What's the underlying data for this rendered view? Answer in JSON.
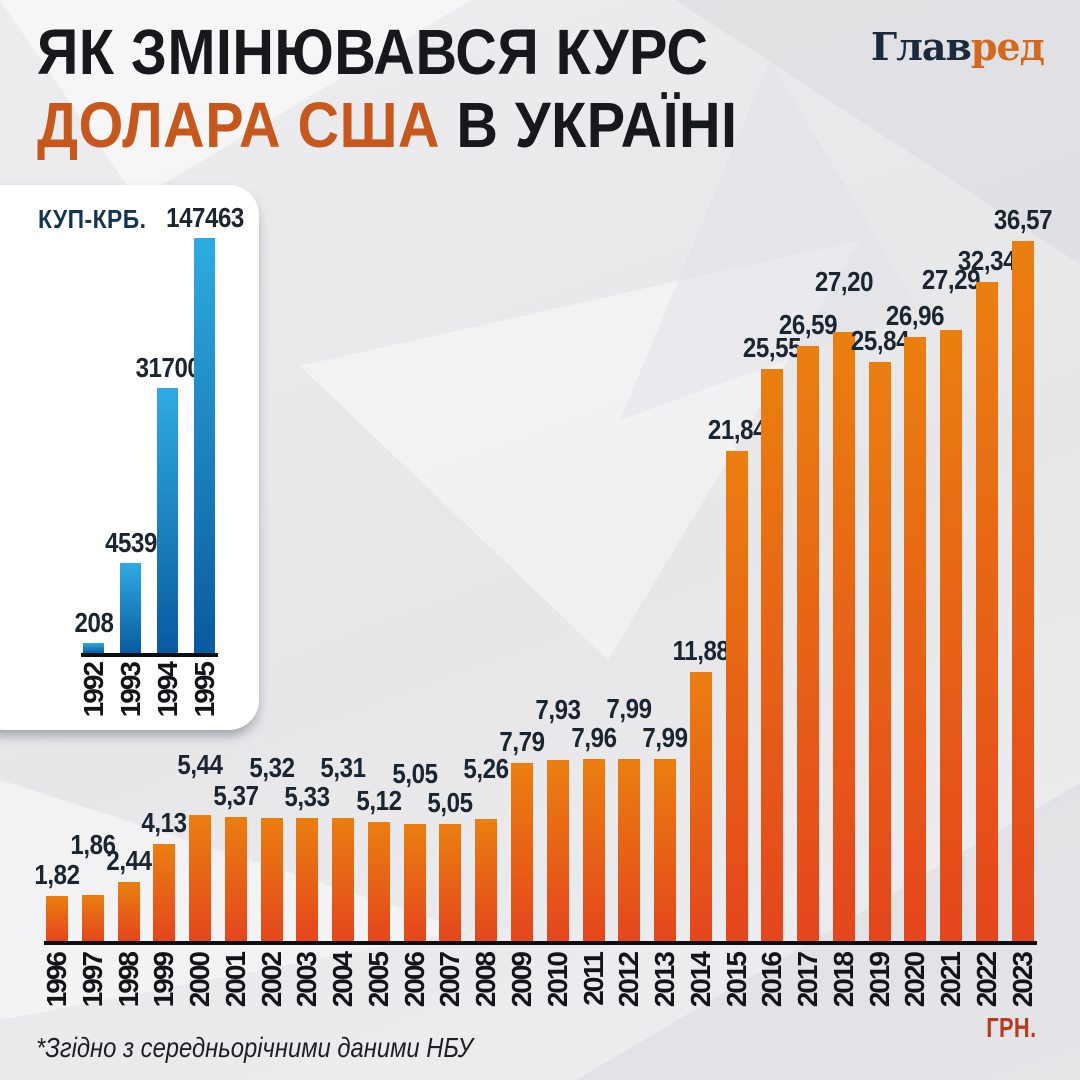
{
  "header": {
    "title_line1": "ЯК ЗМІНЮВАВСЯ КУРС",
    "title_line2_highlight": "ДОЛАРА США",
    "title_line2_rest": " В УКРАЇНІ",
    "logo_part1": "Глав",
    "logo_part2": "ред"
  },
  "footnote": "*Згідно з середньорічними даними НБУ",
  "colors": {
    "accent_orange": "#C6571D",
    "bar_orange_top": "#EA7F10",
    "bar_orange_bottom": "#E4461D",
    "bar_blue_top": "#2FABE1",
    "bar_blue_bottom": "#0A5AA0",
    "logo_navy": "#1C2B3C",
    "logo_orange": "#D2691E",
    "inset_header_navy": "#14344F",
    "grn_label_color": "#B83B1B",
    "axis_color": "#0C0E12",
    "background": "#E9E9EB",
    "card": "#FFFFFF"
  },
  "chart_data": [
    {
      "id": "usd-uah-1996-2023",
      "type": "bar",
      "title": "ЯК ЗМІНЮВАВСЯ КУРС ДОЛАРА США В УКРАЇНІ",
      "unit_label": "ГРН.",
      "categories": [
        "1996",
        "1997",
        "1998",
        "1999",
        "2000",
        "2001",
        "2002",
        "2003",
        "2004",
        "2005",
        "2006",
        "2007",
        "2008",
        "2009",
        "2010",
        "2011",
        "2012",
        "2013",
        "2014",
        "2015",
        "2016",
        "2017",
        "2018",
        "2019",
        "2020",
        "2021",
        "2022",
        "2023"
      ],
      "values": [
        1.82,
        1.86,
        2.44,
        4.13,
        5.44,
        5.37,
        5.32,
        5.33,
        5.31,
        5.12,
        5.05,
        5.05,
        5.26,
        7.79,
        7.93,
        7.96,
        7.99,
        7.99,
        11.88,
        21.84,
        25.55,
        26.59,
        27.2,
        25.84,
        26.96,
        27.29,
        32.34,
        36.57
      ],
      "value_labels": [
        "1,82",
        "1,86",
        "2,44",
        "4,13",
        "5,44",
        "5,37",
        "5,32",
        "5,33",
        "5,31",
        "5,12",
        "5,05",
        "5,05",
        "5,26",
        "7,79",
        "7,93",
        "7,96",
        "7,99",
        "7,99",
        "11,88",
        "21,84",
        "25,55",
        "26,59",
        "27,20",
        "25,84",
        "26,96",
        "27,29",
        "32,34",
        "36,57"
      ],
      "ylim": [
        0,
        37
      ],
      "grid": false,
      "legend": "none",
      "note": "*Згідно з середньорічними даними НБУ"
    },
    {
      "id": "usd-kup-krb-1992-1995",
      "type": "bar",
      "unit_label": "КУП-КРБ.",
      "categories": [
        "1992",
        "1993",
        "1994",
        "1995"
      ],
      "values": [
        208,
        4539,
        31700,
        147463
      ],
      "value_labels": [
        "208",
        "4539",
        "31700",
        "147463"
      ],
      "ylim": [
        0,
        147463
      ],
      "grid": false,
      "legend": "none"
    }
  ]
}
